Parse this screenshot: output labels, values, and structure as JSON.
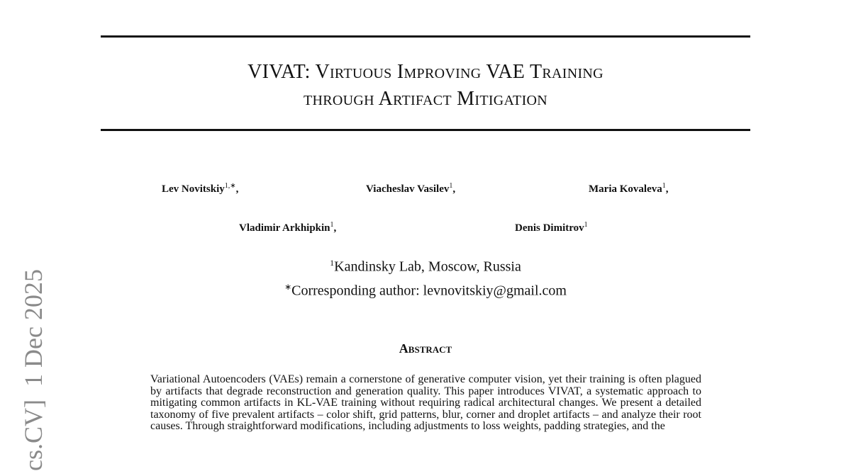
{
  "side_stamp": "cs.CV]  1 Dec 2025",
  "title": {
    "line1": "VIVAT: Virtuous Improving VAE Training",
    "line2": "through Artifact Mitigation"
  },
  "authors": [
    {
      "name": "Lev Novitskiy",
      "sup": "1,∗",
      "suffix": ","
    },
    {
      "name": "Viacheslav Vasilev",
      "sup": "1",
      "suffix": ","
    },
    {
      "name": "Maria Kovaleva",
      "sup": "1",
      "suffix": ","
    },
    {
      "name": "Vladimir Arkhipkin",
      "sup": "1",
      "suffix": ","
    },
    {
      "name": "Denis Dimitrov",
      "sup": "1",
      "suffix": ""
    }
  ],
  "affiliation": {
    "sup": "1",
    "text": "Kandinsky Lab, Moscow, Russia"
  },
  "corresponding": {
    "sup": "∗",
    "text": "Corresponding author: levnovitskiy@gmail.com"
  },
  "abstract": {
    "heading": "Abstract",
    "text": "Variational Autoencoders (VAEs) remain a cornerstone of generative computer vision, yet their training is often plagued by artifacts that degrade reconstruction and generation quality. This paper introduces VIVAT, a systematic approach to mitigating common artifacts in KL-VAE training without requiring radical architectural changes. We present a detailed taxonomy of five prevalent artifacts – color shift, grid patterns, blur, corner and droplet artifacts – and analyze their root causes. Through straightforward modifications, including adjustments to loss weights, padding strategies, and the"
  }
}
